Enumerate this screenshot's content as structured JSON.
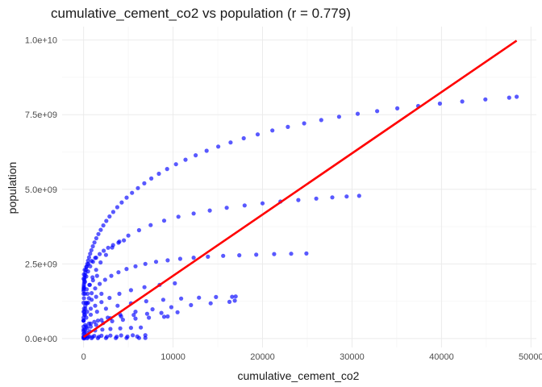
{
  "chart_data": {
    "type": "scatter",
    "title": "cumulative_cement_co2 vs population (r = 0.779)",
    "xlabel": "cumulative_cement_co2",
    "ylabel": "population",
    "xlim": [
      -2400,
      50600
    ],
    "ylim": [
      -300000000,
      10450000000
    ],
    "x_ticks": [
      0,
      10000,
      20000,
      30000,
      40000,
      50000
    ],
    "x_tick_labels": [
      "0",
      "10000",
      "20000",
      "30000",
      "40000",
      "50000"
    ],
    "y_ticks": [
      0,
      2500000000,
      5000000000,
      7500000000,
      10000000000
    ],
    "y_tick_labels": [
      "0.0e+00",
      "2.5e+09",
      "5.0e+09",
      "7.5e+09",
      "1.0e+10"
    ],
    "grid": true,
    "point_color": "#0000ff",
    "fit_line": {
      "color": "#ff0000",
      "x": [
        0,
        48400
      ],
      "y": [
        50000000,
        9980000000
      ]
    },
    "series": [
      {
        "x": [
          0,
          4,
          12,
          24,
          40,
          60,
          86,
          118,
          158,
          206,
          264,
          332,
          412,
          505,
          612,
          735,
          876,
          1036,
          1218,
          1424,
          1656,
          1917,
          2210,
          2538,
          2904,
          3311,
          3762,
          4260,
          4809,
          5411,
          6070,
          6789,
          7571,
          8419,
          9336,
          10325,
          11388,
          12528,
          13748,
          15049,
          16433,
          17902,
          19457,
          21100,
          22830,
          24649,
          26557,
          28552,
          30634,
          32803,
          35058,
          37397,
          39819,
          42321,
          44902,
          47562,
          48400
        ],
        "y": [
          1600000000,
          1650000000,
          1700000000,
          1760000000,
          1820000000,
          1890000000,
          1960000000,
          2040000000,
          2120000000,
          2210000000,
          2300000000,
          2400000000,
          2500000000,
          2610000000,
          2720000000,
          2840000000,
          2960000000,
          3090000000,
          3220000000,
          3360000000,
          3500000000,
          3640000000,
          3790000000,
          3940000000,
          4090000000,
          4240000000,
          4400000000,
          4560000000,
          4720000000,
          4880000000,
          5040000000,
          5200000000,
          5360000000,
          5520000000,
          5680000000,
          5840000000,
          5990000000,
          6140000000,
          6290000000,
          6430000000,
          6570000000,
          6710000000,
          6840000000,
          6970000000,
          7090000000,
          7210000000,
          7320000000,
          7430000000,
          7530000000,
          7620000000,
          7710000000,
          7790000000,
          7870000000,
          7940000000,
          8010000000,
          8070000000,
          8100000000
        ]
      },
      {
        "x": [
          0,
          100,
          250,
          450,
          700,
          1000,
          1400,
          1900,
          2500,
          3200,
          4000,
          5000,
          6200,
          7500,
          9000,
          10600,
          12300,
          14100,
          16000,
          18000,
          20000,
          22000,
          24000,
          26000,
          27800,
          29400,
          30800
        ],
        "y": [
          600000000,
          900000000,
          1200000000,
          1500000000,
          1800000000,
          2050000000,
          2300000000,
          2550000000,
          2800000000,
          3050000000,
          3250000000,
          3450000000,
          3630000000,
          3800000000,
          3950000000,
          4080000000,
          4190000000,
          4290000000,
          4380000000,
          4460000000,
          4530000000,
          4590000000,
          4640000000,
          4690000000,
          4730000000,
          4760000000,
          4780000000
        ]
      },
      {
        "x": [
          0,
          80,
          200,
          380,
          600,
          900,
          1300,
          1800,
          2400,
          3100,
          3900,
          4800,
          5800,
          6900,
          8100,
          9400,
          10800,
          12300,
          13900,
          15600,
          17400,
          19300,
          21300,
          23200,
          24900
        ],
        "y": [
          600000000,
          800000000,
          1000000000,
          1180000000,
          1350000000,
          1520000000,
          1680000000,
          1830000000,
          1970000000,
          2100000000,
          2220000000,
          2330000000,
          2420000000,
          2500000000,
          2570000000,
          2620000000,
          2670000000,
          2710000000,
          2740000000,
          2770000000,
          2790000000,
          2810000000,
          2830000000,
          2840000000,
          2850000000
        ]
      },
      {
        "x": [
          0,
          60,
          160,
          300,
          500,
          750,
          1050,
          1400,
          1800,
          2250,
          2750,
          3300,
          3900,
          4500
        ],
        "y": [
          1500000000,
          1700000000,
          1900000000,
          2080000000,
          2250000000,
          2420000000,
          2570000000,
          2710000000,
          2830000000,
          2940000000,
          3040000000,
          3130000000,
          3210000000,
          3290000000
        ]
      },
      {
        "x": [
          0,
          150,
          400,
          800,
          1300,
          2000,
          2900,
          4000,
          5300,
          6800,
          8500,
          10200
        ],
        "y": [
          700000000,
          800000000,
          900000000,
          1000000000,
          1100000000,
          1220000000,
          1360000000,
          1500000000,
          1620000000,
          1720000000,
          1800000000,
          1850000000
        ]
      },
      {
        "x": [
          0,
          300,
          800,
          1500,
          2500,
          3800,
          5300,
          7000,
          8900,
          10900,
          12900,
          14800,
          16600,
          17000
        ],
        "y": [
          600000000,
          700000000,
          800000000,
          900000000,
          1000000000,
          1100000000,
          1180000000,
          1250000000,
          1300000000,
          1340000000,
          1370000000,
          1390000000,
          1400000000,
          1410000000
        ]
      },
      {
        "x": [
          0,
          300,
          800,
          1600,
          2700,
          4100,
          5800,
          7700,
          9800,
          12000,
          14200,
          16300,
          16900
        ],
        "y": [
          300000000,
          400000000,
          500000000,
          600000000,
          700000000,
          800000000,
          900000000,
          980000000,
          1050000000,
          1120000000,
          1180000000,
          1230000000,
          1270000000
        ]
      },
      {
        "x": [
          0,
          200,
          600,
          1200,
          2000,
          3000,
          4200,
          5600,
          7100,
          8700,
          10500
        ],
        "y": [
          400000000,
          450000000,
          500000000,
          560000000,
          620000000,
          680000000,
          740000000,
          790000000,
          830000000,
          860000000,
          880000000
        ]
      },
      {
        "x": [
          0,
          150,
          400,
          800,
          1400,
          2200,
          3200,
          4400,
          5800,
          7300,
          9000,
          9400
        ],
        "y": [
          250000000,
          300000000,
          350000000,
          400000000,
          460000000,
          520000000,
          580000000,
          630000000,
          670000000,
          700000000,
          730000000,
          740000000
        ]
      },
      {
        "x": [
          0,
          100,
          300,
          700,
          1300,
          2100,
          3000,
          4100,
          5300,
          6400
        ],
        "y": [
          150000000,
          180000000,
          210000000,
          240000000,
          270000000,
          300000000,
          320000000,
          340000000,
          360000000,
          370000000
        ]
      },
      {
        "x": [
          0,
          200,
          600,
          1200,
          2000,
          3000,
          4200,
          5500,
          6900
        ],
        "y": [
          60000000,
          70000000,
          80000000,
          90000000,
          95000000,
          100000000,
          105000000,
          110000000,
          112000000
        ]
      },
      {
        "x": [
          0,
          150,
          500,
          1000,
          1700,
          2600,
          3700,
          4900,
          6000
        ],
        "y": [
          40000000,
          45000000,
          50000000,
          55000000,
          58000000,
          60000000,
          62000000,
          64000000,
          66000000
        ]
      },
      {
        "x": [
          0,
          100,
          400,
          900,
          1600,
          2500,
          3600,
          4800,
          6200,
          6900
        ],
        "y": [
          5000000,
          8000000,
          10000000,
          12000000,
          14000000,
          16000000,
          17000000,
          18000000,
          19000000,
          20000000
        ]
      },
      {
        "x": [
          0,
          50,
          200,
          500,
          900,
          1400,
          2000
        ],
        "y": [
          900000000,
          1000000000,
          1100000000,
          1200000000,
          1300000000,
          1400000000,
          1500000000
        ]
      },
      {
        "x": [
          0,
          40,
          150,
          350,
          650,
          1050,
          1500
        ],
        "y": [
          1200000000,
          1350000000,
          1500000000,
          1650000000,
          1800000000,
          1950000000,
          2100000000
        ]
      },
      {
        "x": [
          0,
          30,
          120,
          300,
          550,
          900,
          1300
        ],
        "y": [
          2000000000,
          2150000000,
          2300000000,
          2400000000,
          2500000000,
          2600000000,
          2700000000
        ]
      }
    ]
  }
}
